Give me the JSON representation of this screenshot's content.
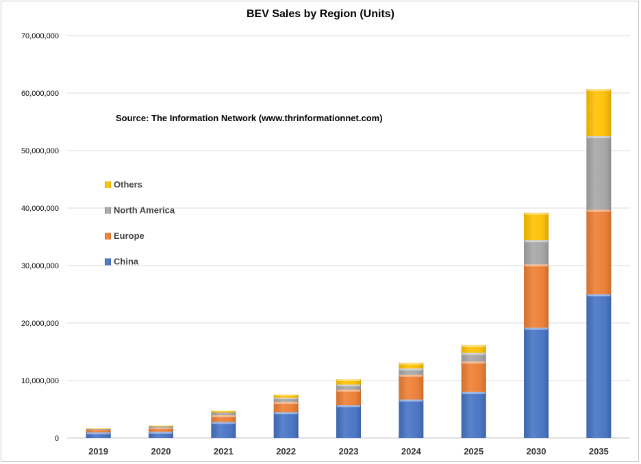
{
  "chart_data": {
    "type": "bar",
    "stacked": true,
    "title": "BEV Sales by Region (Units)",
    "annotation": "Source: The Information Network (www.thrinformationnet.com)",
    "categories": [
      "2019",
      "2020",
      "2021",
      "2022",
      "2023",
      "2024",
      "2025",
      "2030",
      "2035"
    ],
    "series": [
      {
        "name": "China",
        "color": "#4472c4",
        "values": [
          1000000,
          1100000,
          2800000,
          4500000,
          5700000,
          6700000,
          8000000,
          19200000,
          25000000
        ]
      },
      {
        "name": "Europe",
        "color": "#ed7d31",
        "values": [
          400000,
          650000,
          1200000,
          1800000,
          2700000,
          4300000,
          5300000,
          11000000,
          14700000
        ]
      },
      {
        "name": "North America",
        "color": "#a5a5a5",
        "values": [
          150000,
          250000,
          450000,
          700000,
          900000,
          1100000,
          1500000,
          4200000,
          12800000
        ]
      },
      {
        "name": "Others",
        "color": "#ffc000",
        "values": [
          100000,
          150000,
          250000,
          550000,
          900000,
          1000000,
          1400000,
          4800000,
          8200000
        ]
      }
    ],
    "ylim": [
      0,
      70000000
    ],
    "yticks": [
      0,
      10000000,
      20000000,
      30000000,
      40000000,
      50000000,
      60000000,
      70000000
    ],
    "ytick_labels": [
      "0",
      "10,000,000",
      "20,000,000",
      "30,000,000",
      "40,000,000",
      "50,000,000",
      "60,000,000",
      "70,000,000"
    ],
    "legend_order": [
      "Others",
      "North America",
      "Europe",
      "China"
    ],
    "legend_position": "left",
    "grid": true,
    "xlabel": "",
    "ylabel": ""
  }
}
